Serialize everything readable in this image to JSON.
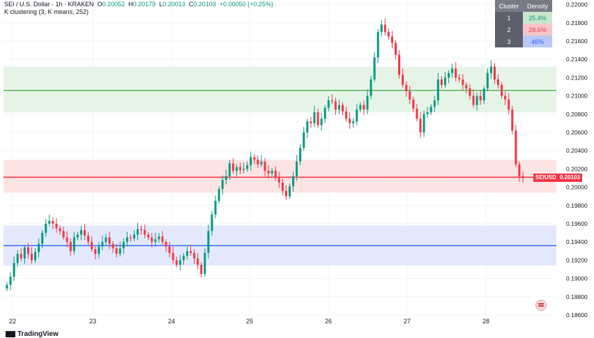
{
  "header": {
    "symbol": "SEI / U.S. Dollar · 1h · KRAKEN",
    "open_label": "O",
    "open": "0.20052",
    "high_label": "H",
    "high": "0.20179",
    "low_label": "L",
    "low": "0.20013",
    "close_label": "C",
    "close": "0.20103",
    "change": "+0.00050 (+0.25%)",
    "indicator": "K clustering (3, K means, 252)"
  },
  "cluster_table": {
    "headers": [
      "Cluster",
      "Density"
    ],
    "rows": [
      {
        "cluster": "1",
        "density": "25.4%",
        "color": "#c8e6c9"
      },
      {
        "cluster": "2",
        "density": "28.6%",
        "color": "#f7c6c6"
      },
      {
        "cluster": "3",
        "density": "46%",
        "color": "#b9c8f5"
      }
    ]
  },
  "symbol_tag": "SEIUSD",
  "price_tag": "0.20103",
  "brand": "TradingView",
  "colors": {
    "up": "#089981",
    "down": "#f23645",
    "green_zone": "#e6f4e7",
    "red_zone": "#fde4e4",
    "blue_zone": "#e3e9fb"
  },
  "chart_data": {
    "type": "candlestick",
    "x_ticks": [
      "22",
      "23",
      "24",
      "25",
      "26",
      "27",
      "28"
    ],
    "y_ticks": [
      "0.22000",
      "0.21800",
      "0.21600",
      "0.21400",
      "0.21200",
      "0.21000",
      "0.20800",
      "0.20600",
      "0.20400",
      "0.20200",
      "0.20000",
      "0.19800",
      "0.19600",
      "0.19400",
      "0.19200",
      "0.19000",
      "0.18800",
      "0.18600"
    ],
    "ylim": [
      0.186,
      0.2205
    ],
    "zones": [
      {
        "name": "cluster-1",
        "low": 0.2082,
        "high": 0.2132,
        "line": 0.2106,
        "color": "#e6f4e7",
        "line_color": "#4caf50"
      },
      {
        "name": "cluster-2",
        "low": 0.1994,
        "high": 0.203,
        "line": 0.2011,
        "color": "#fde4e4",
        "line_color": "#f23645"
      },
      {
        "name": "cluster-3",
        "low": 0.1914,
        "high": 0.1958,
        "line": 0.1936,
        "color": "#e3e9fb",
        "line_color": "#2962ff"
      }
    ],
    "current_price": 0.20103,
    "closes": [
      0.1893,
      0.1902,
      0.1917,
      0.1927,
      0.1922,
      0.1934,
      0.1927,
      0.192,
      0.1929,
      0.1938,
      0.195,
      0.196,
      0.1963,
      0.196,
      0.1955,
      0.1952,
      0.1945,
      0.194,
      0.193,
      0.1945,
      0.1948,
      0.1953,
      0.1947,
      0.194,
      0.1932,
      0.1927,
      0.1935,
      0.194,
      0.1945,
      0.1938,
      0.1933,
      0.1927,
      0.1933,
      0.194,
      0.1945,
      0.1944,
      0.1948,
      0.1954,
      0.1953,
      0.1948,
      0.1945,
      0.194,
      0.1943,
      0.1946,
      0.194,
      0.1935,
      0.1928,
      0.192,
      0.1915,
      0.192,
      0.1925,
      0.193,
      0.1928,
      0.1922,
      0.1915,
      0.1905,
      0.1928,
      0.1952,
      0.197,
      0.1985,
      0.1998,
      0.2008,
      0.2012,
      0.2026,
      0.2018,
      0.2022,
      0.2019,
      0.202,
      0.2024,
      0.2033,
      0.203,
      0.2025,
      0.2028,
      0.2018,
      0.2015,
      0.2018,
      0.201,
      0.2005,
      0.1996,
      0.199,
      0.2001,
      0.2012,
      0.2028,
      0.2043,
      0.206,
      0.2072,
      0.207,
      0.2082,
      0.2068,
      0.2075,
      0.2087,
      0.2095,
      0.2094,
      0.2085,
      0.209,
      0.2083,
      0.2075,
      0.207,
      0.2072,
      0.2085,
      0.209,
      0.2085,
      0.21,
      0.2118,
      0.2142,
      0.217,
      0.2178,
      0.217,
      0.2165,
      0.2158,
      0.2145,
      0.2123,
      0.2112,
      0.2105,
      0.2096,
      0.2086,
      0.2075,
      0.206,
      0.208,
      0.2082,
      0.2088,
      0.2095,
      0.2118,
      0.2112,
      0.212,
      0.2125,
      0.213,
      0.212,
      0.2118,
      0.2112,
      0.2108,
      0.21,
      0.209,
      0.21,
      0.2095,
      0.2108,
      0.2125,
      0.2132,
      0.2118,
      0.2112,
      0.21,
      0.2096,
      0.2085,
      0.2062,
      0.2025,
      0.2012,
      0.201
    ]
  }
}
